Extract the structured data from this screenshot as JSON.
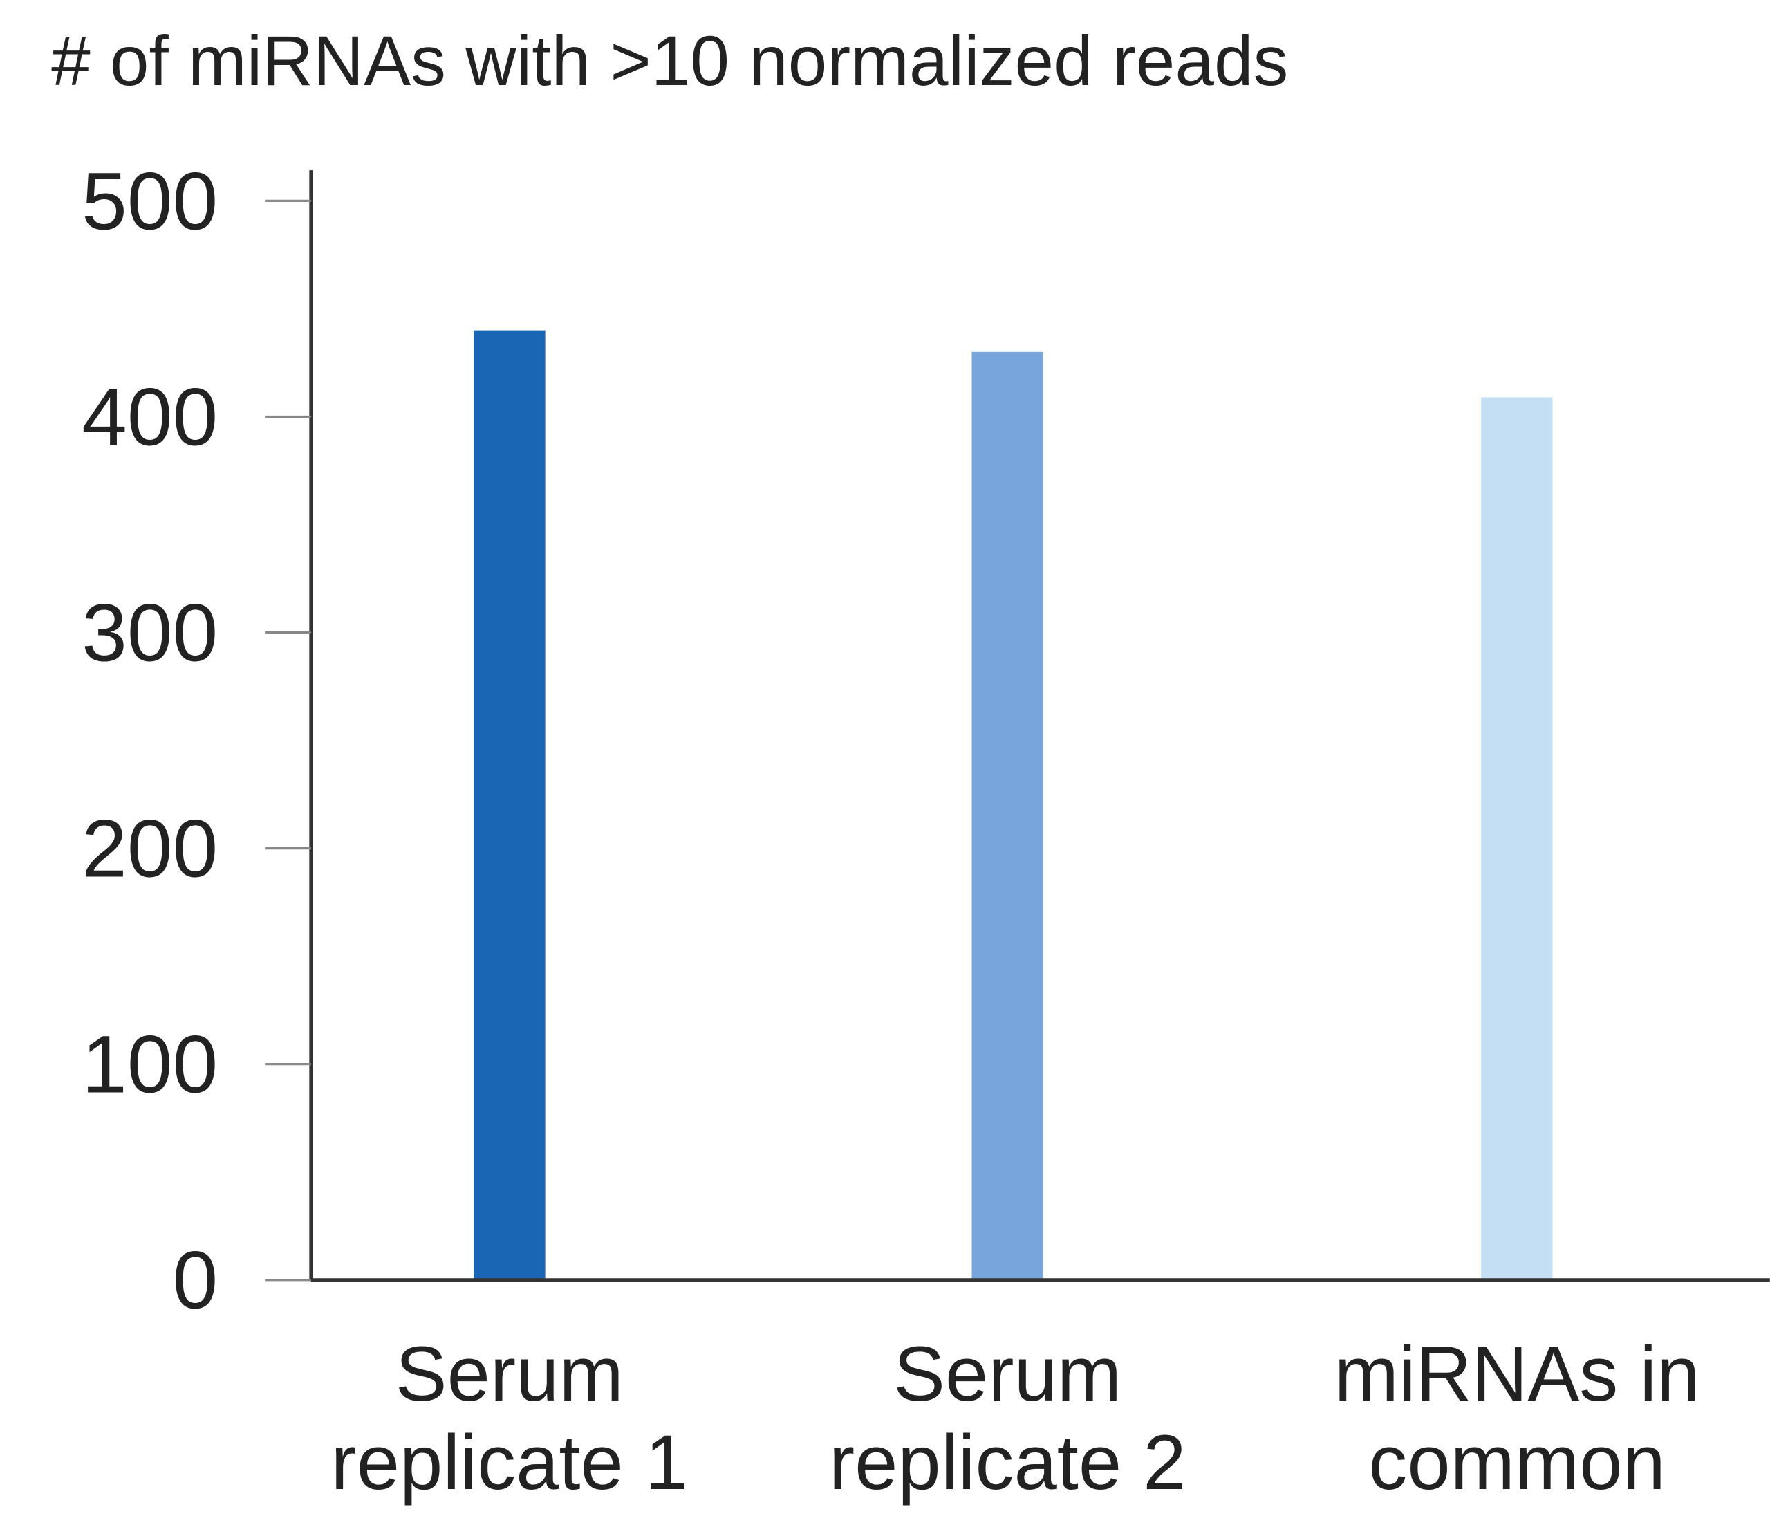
{
  "chart_data": {
    "type": "bar",
    "title": "# of miRNAs with >10 normalized reads",
    "categories": [
      "Serum replicate 1",
      "Serum replicate 2",
      "miRNAs in common"
    ],
    "values": [
      440,
      430,
      409
    ],
    "colors": [
      "#1a66b5",
      "#78a5db",
      "#c4dff3"
    ],
    "ylim": [
      0,
      500
    ],
    "yticks": [
      0,
      100,
      200,
      300,
      400,
      500
    ],
    "grid": false
  }
}
